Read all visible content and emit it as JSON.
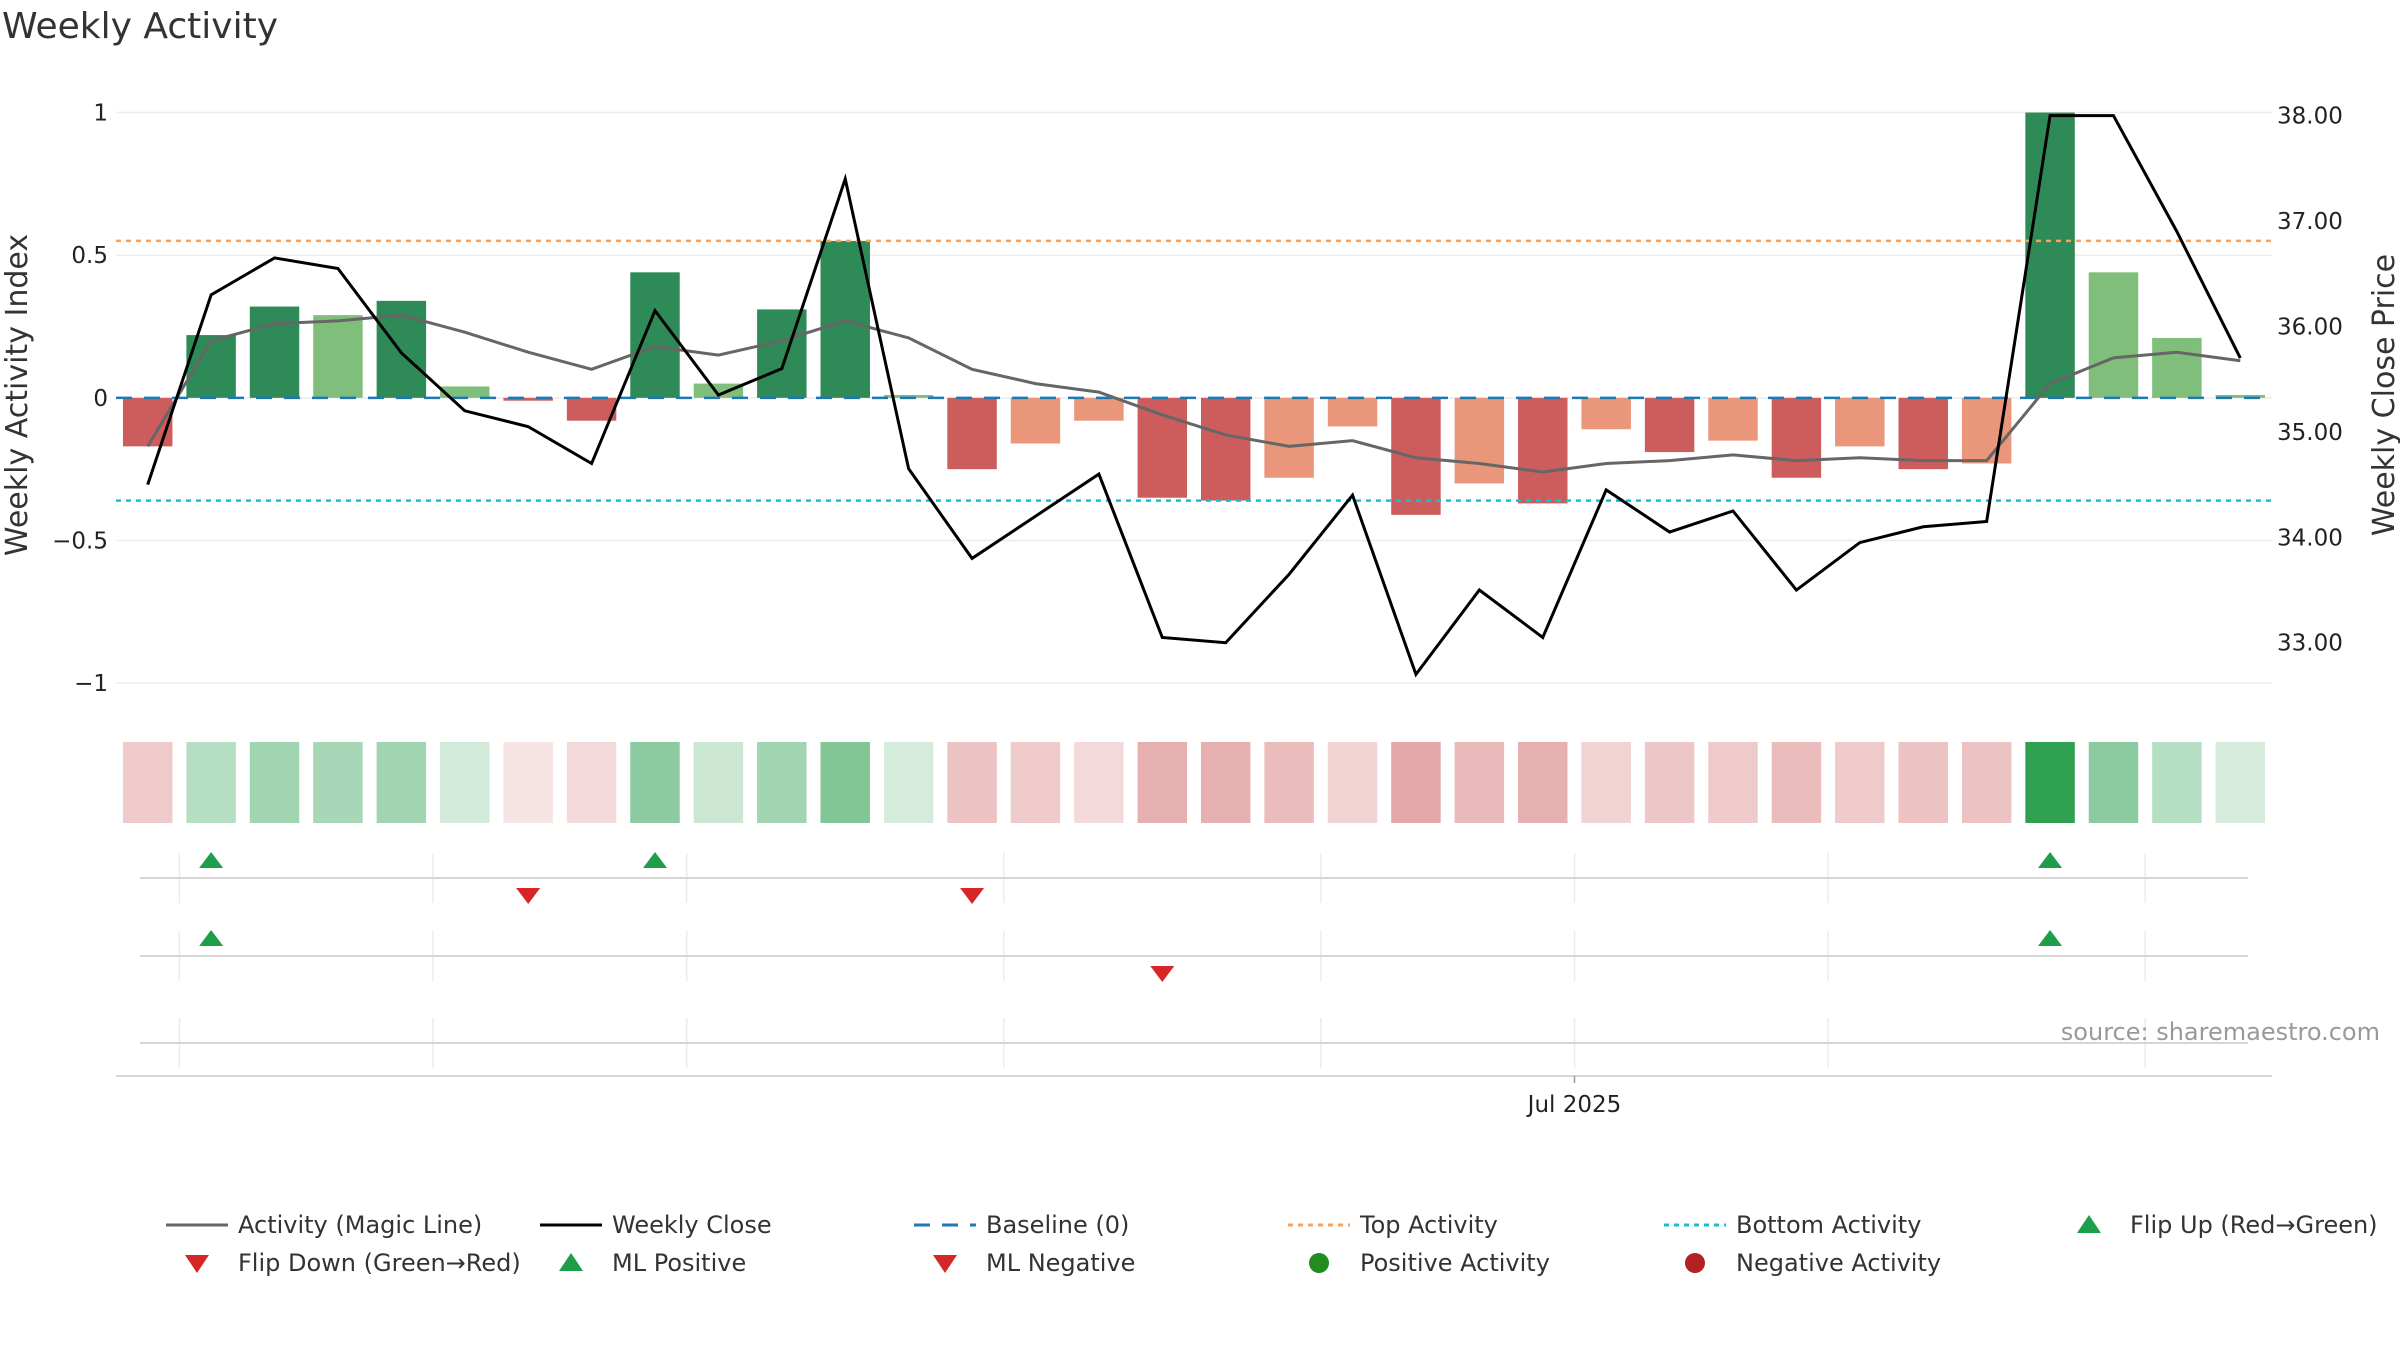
{
  "title": "Weekly Activity",
  "source": "source: sharemaestro.com",
  "colors": {
    "strong_green": "#2e8b57",
    "light_green": "#7fbf7b",
    "strong_red": "#cd5c5c",
    "light_red": "#e9967a",
    "magic_line": "#666666",
    "weekly_close": "#000000",
    "baseline": "#1f77b4",
    "top_activity": "#f4a460",
    "bottom_activity": "#17becf",
    "flip_up": "#1e9e4a",
    "flip_down": "#d62728",
    "positive": "#228b22",
    "negative": "#b22222"
  },
  "chart_data": {
    "type": "bar",
    "ylabel": "Weekly Activity Index",
    "y2label": "Weekly Close Price",
    "ylim": [
      -1.08,
      1.1
    ],
    "y2lim": [
      32.4,
      38.3
    ],
    "yticks": [
      {
        "v": 1,
        "label": "1"
      },
      {
        "v": 0.5,
        "label": "0.5"
      },
      {
        "v": 0,
        "label": "0"
      },
      {
        "v": -0.5,
        "label": "−0.5"
      },
      {
        "v": -1,
        "label": "−1"
      }
    ],
    "y2ticks": [
      {
        "v": 38,
        "label": "38.00"
      },
      {
        "v": 37,
        "label": "37.00"
      },
      {
        "v": 36,
        "label": "36.00"
      },
      {
        "v": 35,
        "label": "35.00"
      },
      {
        "v": 34,
        "label": "34.00"
      },
      {
        "v": 33,
        "label": "33.00"
      }
    ],
    "xtick": {
      "week": 22.5,
      "label": "Jul 2025"
    },
    "activity": [
      -0.17,
      0.22,
      0.32,
      0.29,
      0.34,
      0.04,
      -0.01,
      -0.08,
      0.44,
      0.05,
      0.31,
      0.55,
      0.01,
      -0.25,
      -0.16,
      -0.08,
      -0.35,
      -0.36,
      -0.28,
      -0.1,
      -0.41,
      -0.3,
      -0.37,
      -0.11,
      -0.19,
      -0.15,
      -0.28,
      -0.17,
      -0.25,
      -0.23,
      1.0,
      0.44,
      0.21,
      0.01
    ],
    "strength": [
      "strong",
      "strong",
      "strong",
      "light",
      "strong",
      "light",
      "strong",
      "strong",
      "strong",
      "light",
      "strong",
      "strong",
      "light",
      "strong",
      "light",
      "light",
      "strong",
      "strong",
      "light",
      "light",
      "strong",
      "light",
      "strong",
      "light",
      "strong",
      "light",
      "strong",
      "light",
      "strong",
      "light",
      "strong",
      "light",
      "light",
      "light"
    ],
    "magic_line": [
      -0.17,
      0.2,
      0.26,
      0.27,
      0.29,
      0.23,
      0.16,
      0.1,
      0.18,
      0.15,
      0.2,
      0.27,
      0.21,
      0.1,
      0.05,
      0.02,
      -0.06,
      -0.13,
      -0.17,
      -0.15,
      -0.21,
      -0.23,
      -0.26,
      -0.23,
      -0.22,
      -0.2,
      -0.22,
      -0.21,
      -0.22,
      -0.22,
      0.05,
      0.14,
      0.16,
      0.13
    ],
    "weekly_close": [
      34.5,
      36.3,
      36.65,
      36.55,
      35.75,
      35.2,
      35.05,
      34.7,
      36.15,
      35.35,
      35.6,
      37.4,
      34.65,
      33.8,
      34.2,
      34.6,
      33.05,
      33.0,
      33.65,
      34.4,
      32.7,
      33.5,
      33.05,
      34.45,
      34.05,
      34.25,
      33.5,
      33.95,
      34.1,
      34.15,
      38.0,
      38.0,
      36.9,
      35.7
    ],
    "top_activity": 0.55,
    "bottom_activity": -0.36,
    "heat_strength": [
      0.3,
      0.35,
      0.45,
      0.42,
      0.45,
      0.22,
      0.16,
      0.22,
      0.55,
      0.25,
      0.45,
      0.6,
      0.2,
      0.35,
      0.3,
      0.22,
      0.45,
      0.45,
      0.38,
      0.25,
      0.5,
      0.4,
      0.45,
      0.25,
      0.32,
      0.3,
      0.38,
      0.3,
      0.35,
      0.35,
      1.0,
      0.55,
      0.35,
      0.2
    ],
    "flip_markers": [
      {
        "week": 1,
        "dir": "up"
      },
      {
        "week": 6,
        "dir": "down"
      },
      {
        "week": 8,
        "dir": "up"
      },
      {
        "week": 13,
        "dir": "down"
      },
      {
        "week": 30,
        "dir": "up"
      }
    ],
    "ml_markers": [
      {
        "week": 1,
        "dir": "up"
      },
      {
        "week": 16,
        "dir": "down"
      },
      {
        "week": 30,
        "dir": "up"
      }
    ],
    "legend": [
      {
        "label": "Activity (Magic Line)",
        "kind": "magic"
      },
      {
        "label": "Weekly Close",
        "kind": "close"
      },
      {
        "label": "Baseline (0)",
        "kind": "baseline"
      },
      {
        "label": "Top Activity",
        "kind": "top"
      },
      {
        "label": "Bottom Activity",
        "kind": "bottom"
      },
      {
        "label": "Flip Up (Red→Green)",
        "kind": "up"
      },
      {
        "label": "Flip Down (Green→Red)",
        "kind": "down"
      },
      {
        "label": "ML Positive",
        "kind": "up"
      },
      {
        "label": "ML Negative",
        "kind": "down"
      },
      {
        "label": "Positive Activity",
        "kind": "pos"
      },
      {
        "label": "Negative Activity",
        "kind": "neg"
      }
    ]
  }
}
